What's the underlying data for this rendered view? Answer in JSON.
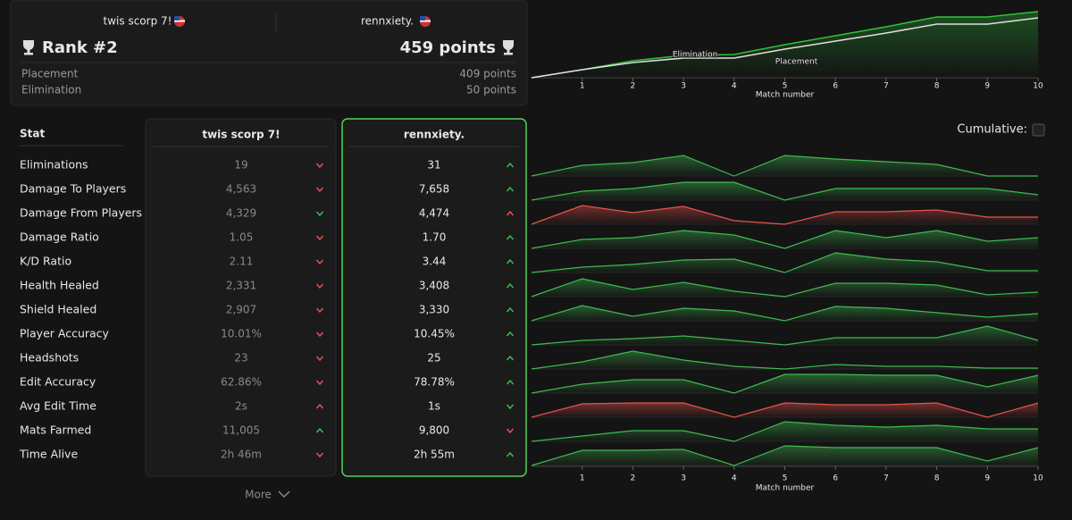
{
  "header": {
    "players": [
      "twis scorp 7!",
      "rennxiety."
    ],
    "rank": "Rank #2",
    "points": "459 points",
    "breakdown": [
      {
        "label": "Placement",
        "value": "409 points"
      },
      {
        "label": "Elimination",
        "value": "50 points"
      }
    ]
  },
  "points_chart": {
    "type": "line",
    "x": [
      0,
      1,
      2,
      3,
      4,
      5,
      6,
      7,
      8,
      9,
      10
    ],
    "xlim": [
      0,
      10
    ],
    "xticks": [
      1,
      2,
      3,
      4,
      5,
      6,
      7,
      8,
      9,
      10
    ],
    "xlabel": "Match number",
    "ylim": [
      0,
      80
    ],
    "series": [
      {
        "color": "#2fc23a",
        "values": [
          0,
          9,
          19,
          25,
          26,
          37,
          47,
          57,
          68,
          68,
          74
        ]
      },
      {
        "color": "#e0e0e0",
        "values": [
          0,
          9,
          17,
          22,
          22,
          32,
          41,
          50,
          60,
          60,
          67
        ]
      }
    ],
    "annotations": [
      {
        "text": "Elimination",
        "x": 3,
        "y": 24
      },
      {
        "text": "Placement",
        "x": 5,
        "y": 16
      }
    ]
  },
  "stats": {
    "header": "Stat",
    "cumulative_label": "Cumulative:",
    "more": "More",
    "rows": [
      {
        "label": "Eliminations",
        "p1": "19",
        "p1_arrow": "down",
        "p1_color": "#e5534b",
        "p2": "31",
        "p2_arrow": "up",
        "p2_color": "#3fb950",
        "spark": [
          0,
          12,
          15,
          23,
          0,
          23,
          19,
          16,
          13,
          0,
          0
        ],
        "spark_color": "#3fb950"
      },
      {
        "label": "Damage To Players",
        "p1": "4,563",
        "p1_arrow": "down",
        "p1_color": "#e5534b",
        "p2": "7,658",
        "p2_arrow": "up",
        "p2_color": "#3fb950",
        "spark": [
          0,
          10,
          13,
          20,
          20,
          0,
          13,
          13,
          13,
          13,
          6
        ],
        "spark_color": "#3fb950"
      },
      {
        "label": "Damage From Players",
        "p1": "4,329",
        "p1_arrow": "down",
        "p1_color": "#3fb950",
        "p2": "4,474",
        "p2_arrow": "up",
        "p2_color": "#e5534b",
        "spark": [
          0,
          21,
          13,
          20,
          4,
          0,
          14,
          14,
          16,
          8,
          8
        ],
        "spark_color": "#e5534b"
      },
      {
        "label": "Damage Ratio",
        "p1": "1.05",
        "p1_arrow": "down",
        "p1_color": "#e5534b",
        "p2": "1.70",
        "p2_arrow": "up",
        "p2_color": "#3fb950",
        "spark": [
          0,
          10,
          12,
          20,
          15,
          0,
          20,
          12,
          20,
          8,
          12
        ],
        "spark_color": "#3fb950"
      },
      {
        "label": "K/D Ratio",
        "p1": "2.11",
        "p1_arrow": "down",
        "p1_color": "#e5534b",
        "p2": "3.44",
        "p2_arrow": "up",
        "p2_color": "#3fb950",
        "spark": [
          0,
          6,
          9,
          14,
          15,
          0,
          22,
          15,
          12,
          2,
          2
        ],
        "spark_color": "#3fb950"
      },
      {
        "label": "Health Healed",
        "p1": "2,331",
        "p1_arrow": "down",
        "p1_color": "#e5534b",
        "p2": "3,408",
        "p2_arrow": "up",
        "p2_color": "#3fb950",
        "spark": [
          0,
          20,
          8,
          16,
          6,
          0,
          15,
          15,
          13,
          2,
          5
        ],
        "spark_color": "#3fb950"
      },
      {
        "label": "Shield Healed",
        "p1": "2,907",
        "p1_arrow": "down",
        "p1_color": "#e5534b",
        "p2": "3,330",
        "p2_arrow": "up",
        "p2_color": "#3fb950",
        "spark": [
          0,
          17,
          5,
          14,
          11,
          0,
          16,
          14,
          9,
          4,
          8
        ],
        "spark_color": "#3fb950"
      },
      {
        "label": "Player Accuracy",
        "p1": "10.01%",
        "p1_arrow": "down",
        "p1_color": "#e5534b",
        "p2": "10.45%",
        "p2_arrow": "up",
        "p2_color": "#3fb950",
        "spark": [
          0,
          5,
          7,
          10,
          5,
          0,
          8,
          8,
          8,
          21,
          5
        ],
        "spark_color": "#3fb950"
      },
      {
        "label": "Headshots",
        "p1": "23",
        "p1_arrow": "down",
        "p1_color": "#e5534b",
        "p2": "25",
        "p2_arrow": "up",
        "p2_color": "#3fb950",
        "spark": [
          0,
          8,
          20,
          10,
          3,
          0,
          5,
          3,
          3,
          1,
          1
        ],
        "spark_color": "#3fb950"
      },
      {
        "label": "Edit Accuracy",
        "p1": "62.86%",
        "p1_arrow": "down",
        "p1_color": "#e5534b",
        "p2": "78.78%",
        "p2_arrow": "up",
        "p2_color": "#3fb950",
        "spark": [
          0,
          10,
          15,
          15,
          0,
          21,
          21,
          20,
          20,
          7,
          20
        ],
        "spark_color": "#3fb950"
      },
      {
        "label": "Avg Edit Time",
        "p1": "2s",
        "p1_arrow": "up",
        "p1_color": "#e5534b",
        "p2": "1s",
        "p2_arrow": "down",
        "p2_color": "#3fb950",
        "spark": [
          0,
          15,
          16,
          16,
          0,
          16,
          14,
          14,
          16,
          0,
          16
        ],
        "spark_color": "#e5534b"
      },
      {
        "label": "Mats Farmed",
        "p1": "11,005",
        "p1_arrow": "up",
        "p1_color": "#3fb950",
        "p2": "9,800",
        "p2_arrow": "down",
        "p2_color": "#e5534b",
        "spark": [
          0,
          6,
          12,
          12,
          0,
          22,
          18,
          16,
          18,
          14,
          14
        ],
        "spark_color": "#3fb950"
      },
      {
        "label": "Time Alive",
        "p1": "2h 46m",
        "p1_arrow": "down",
        "p1_color": "#e5534b",
        "p2": "2h 55m",
        "p2_arrow": "up",
        "p2_color": "#3fb950",
        "spark": [
          0,
          17,
          17,
          18,
          0,
          22,
          20,
          20,
          20,
          5,
          20
        ],
        "spark_color": "#3fb950"
      }
    ]
  },
  "spark_chart": {
    "type": "area",
    "x": [
      0,
      1,
      2,
      3,
      4,
      5,
      6,
      7,
      8,
      9,
      10
    ],
    "xlim": [
      0,
      10
    ],
    "ylim": [
      0,
      25
    ],
    "xticks": [
      1,
      2,
      3,
      4,
      5,
      6,
      7,
      8,
      9,
      10
    ],
    "xlabel": "Match number"
  }
}
